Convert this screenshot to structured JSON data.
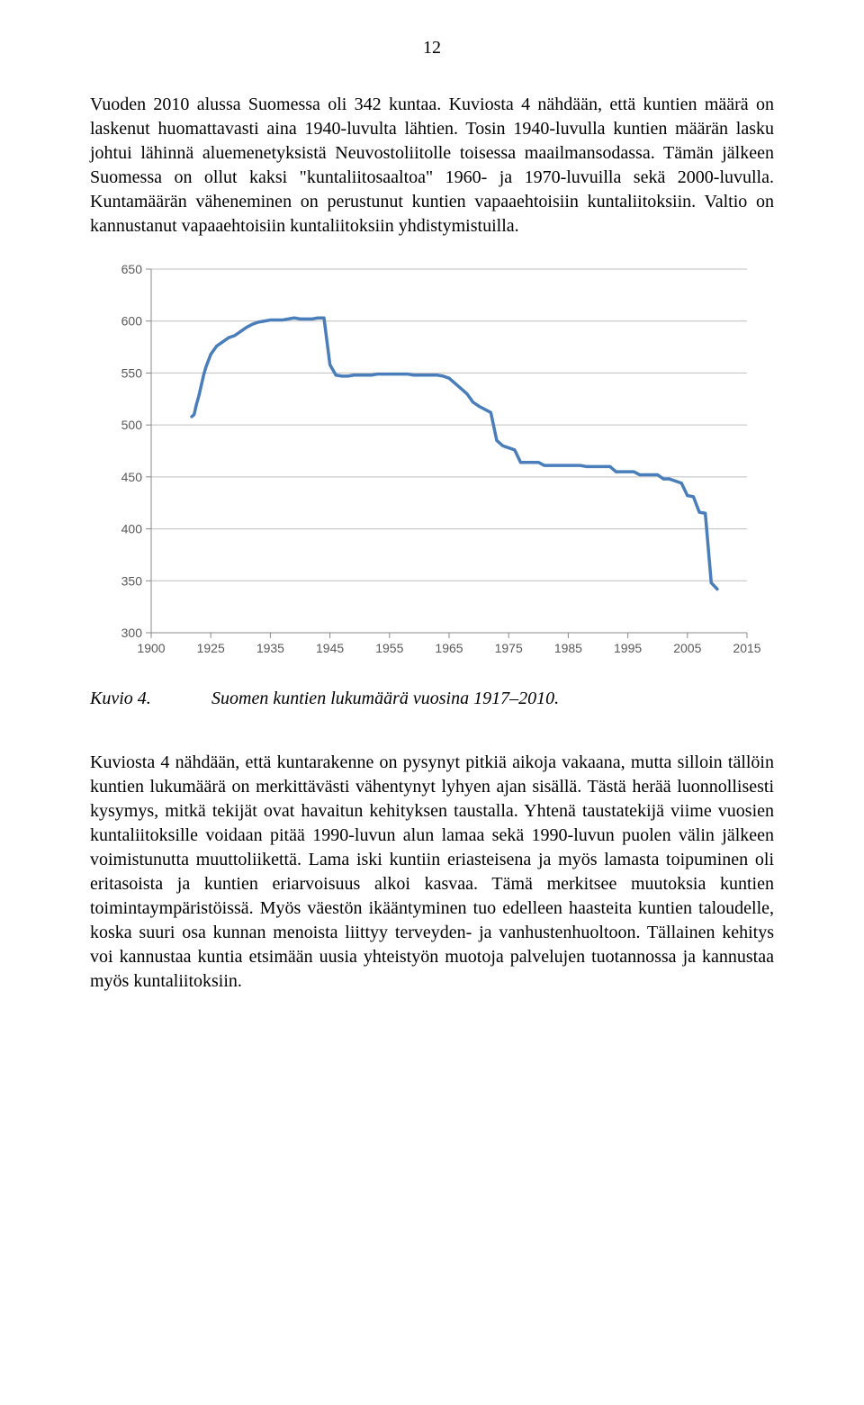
{
  "page_number": "12",
  "paragraph_1": "Vuoden 2010 alussa Suomessa oli 342 kuntaa. Kuviosta 4 nähdään, että kuntien määrä on laskenut huomattavasti aina 1940-luvulta lähtien. Tosin 1940-luvulla kuntien määrän lasku johtui lähinnä aluemenetyksistä Neuvostoliitolle toisessa maailmansodassa. Tämän jälkeen Suomessa on ollut kaksi \"kuntaliitosaaltoa\" 1960- ja 1970-luvuilla sekä 2000-luvulla. Kuntamäärän väheneminen on perustunut kuntien vapaaehtoisiin kuntaliitoksiin. Valtio on kannustanut vapaaehtoisiin kuntaliitoksiin yhdistymistuilla.",
  "chart": {
    "type": "line",
    "background_color": "#ffffff",
    "grid_color": "#bfbfbf",
    "axis_color": "#888888",
    "tick_color": "#888888",
    "label_color": "#595959",
    "line_color": "#4a7ebb",
    "line_width": 3.5,
    "label_fontsize": 14,
    "font_family": "Arial, sans-serif",
    "ylim": [
      300,
      650
    ],
    "ytick_step": 50,
    "yticks": [
      300,
      350,
      400,
      450,
      500,
      550,
      600,
      650
    ],
    "xticks": [
      1900,
      1925,
      1935,
      1945,
      1955,
      1965,
      1975,
      1985,
      1995,
      2005,
      2015
    ],
    "series": [
      {
        "x": 1917,
        "y": 508
      },
      {
        "x": 1918,
        "y": 510
      },
      {
        "x": 1919,
        "y": 520
      },
      {
        "x": 1920,
        "y": 528
      },
      {
        "x": 1921,
        "y": 538
      },
      {
        "x": 1922,
        "y": 548
      },
      {
        "x": 1923,
        "y": 556
      },
      {
        "x": 1924,
        "y": 562
      },
      {
        "x": 1925,
        "y": 568
      },
      {
        "x": 1926,
        "y": 576
      },
      {
        "x": 1927,
        "y": 580
      },
      {
        "x": 1928,
        "y": 584
      },
      {
        "x": 1929,
        "y": 586
      },
      {
        "x": 1930,
        "y": 590
      },
      {
        "x": 1931,
        "y": 594
      },
      {
        "x": 1932,
        "y": 597
      },
      {
        "x": 1933,
        "y": 599
      },
      {
        "x": 1934,
        "y": 600
      },
      {
        "x": 1935,
        "y": 601
      },
      {
        "x": 1936,
        "y": 601
      },
      {
        "x": 1937,
        "y": 601
      },
      {
        "x": 1938,
        "y": 602
      },
      {
        "x": 1939,
        "y": 603
      },
      {
        "x": 1940,
        "y": 602
      },
      {
        "x": 1941,
        "y": 602
      },
      {
        "x": 1942,
        "y": 602
      },
      {
        "x": 1943,
        "y": 603
      },
      {
        "x": 1944,
        "y": 603
      },
      {
        "x": 1945,
        "y": 558
      },
      {
        "x": 1946,
        "y": 548
      },
      {
        "x": 1947,
        "y": 547
      },
      {
        "x": 1948,
        "y": 547
      },
      {
        "x": 1949,
        "y": 548
      },
      {
        "x": 1950,
        "y": 548
      },
      {
        "x": 1951,
        "y": 548
      },
      {
        "x": 1952,
        "y": 548
      },
      {
        "x": 1953,
        "y": 549
      },
      {
        "x": 1954,
        "y": 549
      },
      {
        "x": 1955,
        "y": 549
      },
      {
        "x": 1956,
        "y": 549
      },
      {
        "x": 1957,
        "y": 549
      },
      {
        "x": 1958,
        "y": 549
      },
      {
        "x": 1959,
        "y": 548
      },
      {
        "x": 1960,
        "y": 548
      },
      {
        "x": 1961,
        "y": 548
      },
      {
        "x": 1962,
        "y": 548
      },
      {
        "x": 1963,
        "y": 548
      },
      {
        "x": 1964,
        "y": 547
      },
      {
        "x": 1965,
        "y": 545
      },
      {
        "x": 1966,
        "y": 540
      },
      {
        "x": 1967,
        "y": 535
      },
      {
        "x": 1968,
        "y": 530
      },
      {
        "x": 1969,
        "y": 522
      },
      {
        "x": 1970,
        "y": 518
      },
      {
        "x": 1971,
        "y": 515
      },
      {
        "x": 1972,
        "y": 512
      },
      {
        "x": 1973,
        "y": 485
      },
      {
        "x": 1974,
        "y": 480
      },
      {
        "x": 1975,
        "y": 478
      },
      {
        "x": 1976,
        "y": 476
      },
      {
        "x": 1977,
        "y": 464
      },
      {
        "x": 1978,
        "y": 464
      },
      {
        "x": 1979,
        "y": 464
      },
      {
        "x": 1980,
        "y": 464
      },
      {
        "x": 1981,
        "y": 461
      },
      {
        "x": 1982,
        "y": 461
      },
      {
        "x": 1983,
        "y": 461
      },
      {
        "x": 1984,
        "y": 461
      },
      {
        "x": 1985,
        "y": 461
      },
      {
        "x": 1986,
        "y": 461
      },
      {
        "x": 1987,
        "y": 461
      },
      {
        "x": 1988,
        "y": 460
      },
      {
        "x": 1989,
        "y": 460
      },
      {
        "x": 1990,
        "y": 460
      },
      {
        "x": 1991,
        "y": 460
      },
      {
        "x": 1992,
        "y": 460
      },
      {
        "x": 1993,
        "y": 455
      },
      {
        "x": 1994,
        "y": 455
      },
      {
        "x": 1995,
        "y": 455
      },
      {
        "x": 1996,
        "y": 455
      },
      {
        "x": 1997,
        "y": 452
      },
      {
        "x": 1998,
        "y": 452
      },
      {
        "x": 1999,
        "y": 452
      },
      {
        "x": 2000,
        "y": 452
      },
      {
        "x": 2001,
        "y": 448
      },
      {
        "x": 2002,
        "y": 448
      },
      {
        "x": 2003,
        "y": 446
      },
      {
        "x": 2004,
        "y": 444
      },
      {
        "x": 2005,
        "y": 432
      },
      {
        "x": 2006,
        "y": 431
      },
      {
        "x": 2007,
        "y": 416
      },
      {
        "x": 2008,
        "y": 415
      },
      {
        "x": 2009,
        "y": 348
      },
      {
        "x": 2010,
        "y": 342
      }
    ]
  },
  "caption": {
    "label": "Kuvio 4.",
    "text": "Suomen kuntien lukumäärä vuosina 1917–2010."
  },
  "paragraph_2": "Kuviosta 4 nähdään, että kuntarakenne on pysynyt pitkiä aikoja vakaana, mutta silloin tällöin kuntien lukumäärä on merkittävästi vähentynyt lyhyen ajan sisällä. Tästä herää luonnollisesti kysymys, mitkä tekijät ovat havaitun kehityksen taustalla. Yhtenä taustatekijä viime vuosien kuntaliitoksille voidaan pitää 1990-luvun alun lamaa sekä 1990-luvun puolen välin jälkeen voimistunutta muuttoliikettä. Lama iski kuntiin eriasteisena ja myös lamasta toipuminen oli eritasoista ja kuntien eriarvoisuus alkoi kasvaa. Tämä merkitsee muutoksia kuntien toimintaympäristöissä. Myös väestön ikääntyminen tuo edelleen haasteita kuntien taloudelle, koska suuri osa kunnan menoista liittyy terveyden- ja vanhustenhuoltoon. Tällainen kehitys voi kannustaa kuntia etsimään uusia yhteistyön muotoja palvelujen tuotannossa ja kannustaa myös kuntaliitoksiin."
}
